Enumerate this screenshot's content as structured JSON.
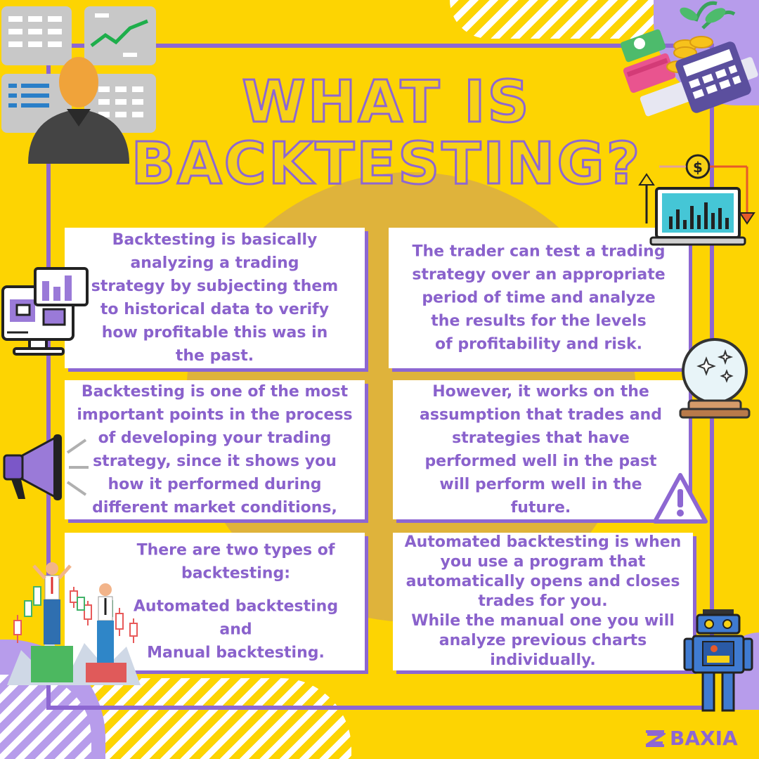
{
  "title": {
    "line1": "WHAT IS",
    "line2": "BACKTESTING?"
  },
  "cards": [
    {
      "lines": [
        "Backtesting  is basically",
        "analyzing  a trading",
        "strategy by subjecting them",
        "to historical data to verify",
        "how profitable this was in",
        "the past."
      ]
    },
    {
      "lines": [
        "The trader can test a trading",
        "strategy over an appropriate",
        "period of time and analyze",
        "the results for the levels",
        "of profitability and risk."
      ]
    },
    {
      "lines": [
        "Backtesting is one of the most",
        "important points in the process",
        "of developing your trading",
        "strategy, since it shows you",
        "how it performed during",
        "different market conditions,"
      ]
    },
    {
      "lines": [
        "However, it works on the",
        "assumption that trades and",
        "strategies that have",
        "performed well in the past",
        "will perform well in the",
        "future."
      ]
    },
    {
      "lines": [
        "There are two types of",
        "backtesting:",
        "",
        "Automated backtesting",
        "and",
        "Manual backtesting."
      ]
    },
    {
      "lines": [
        "Automated backtesting is when",
        "you use a program that",
        "automatically opens and closes",
        "trades for you.",
        "While the manual one you will",
        "analyze previous charts",
        "individually."
      ]
    }
  ],
  "brand": {
    "name": "BAXIA"
  },
  "colors": {
    "background": "#fdd402",
    "accent": "#8d67d2",
    "text": "#8a62cc",
    "card": "#ffffff"
  },
  "decorations": {
    "top_left": "trader-monitors-illustration",
    "top_right": "money-cards-calculator-illustration",
    "right_upper": "laptop-chart-icon",
    "left_upper": "computer-chart-icon",
    "right_middle": "crystal-ball-icon",
    "left_middle": "megaphone-icon",
    "right_lower_middle": "warning-icon",
    "bottom_left": "businessmen-podium-illustration",
    "bottom_right": "robot-illustration"
  }
}
